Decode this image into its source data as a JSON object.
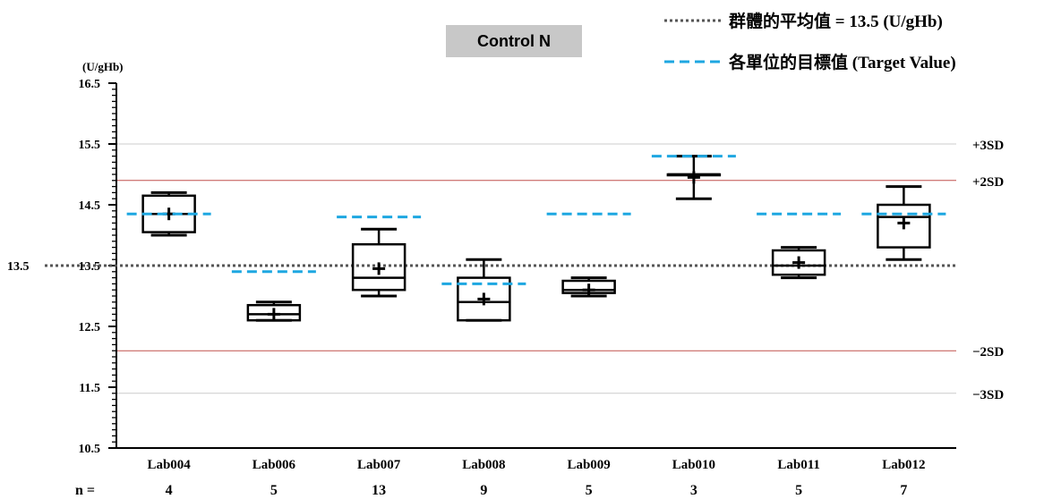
{
  "chart_data": {
    "type": "box",
    "title": "Control N",
    "unit": "(U/gHb)",
    "ylim": [
      10.5,
      16.5
    ],
    "yticks": [
      "16.5",
      "15.5",
      "14.5",
      "13.5",
      "12.5",
      "11.5",
      "10.5"
    ],
    "y_minor_step": 0.1,
    "group_mean": {
      "value": 13.5,
      "label": "13.5",
      "legend": "群體的平均值 = 13.5 (U/gHb)",
      "color": "#555555"
    },
    "target_legend": "各單位的目標值 (Target Value)",
    "target_color": "#1ea7e1",
    "sd_lines": [
      {
        "label": "+3SD",
        "value": 15.5,
        "color": "#cccccc"
      },
      {
        "label": "+2SD",
        "value": 14.9,
        "color": "#c0504d"
      },
      {
        "label": "−2SD",
        "value": 12.1,
        "color": "#c0504d"
      },
      {
        "label": "−3SD",
        "value": 11.4,
        "color": "#cccccc"
      }
    ],
    "n_label": "n =",
    "labs": [
      {
        "name": "Lab004",
        "n": "4",
        "min": 14.0,
        "q1": 14.05,
        "median": 14.35,
        "q3": 14.65,
        "max": 14.7,
        "mean": 14.35,
        "target": 14.35
      },
      {
        "name": "Lab006",
        "n": "5",
        "min": 12.6,
        "q1": 12.6,
        "median": 12.7,
        "q3": 12.85,
        "max": 12.9,
        "mean": 12.7,
        "target": 13.4
      },
      {
        "name": "Lab007",
        "n": "13",
        "min": 13.0,
        "q1": 13.1,
        "median": 13.3,
        "q3": 13.85,
        "max": 14.1,
        "mean": 13.45,
        "target": 14.3
      },
      {
        "name": "Lab008",
        "n": "9",
        "min": 12.6,
        "q1": 12.6,
        "median": 12.9,
        "q3": 13.3,
        "max": 13.6,
        "mean": 12.95,
        "target": 13.2
      },
      {
        "name": "Lab009",
        "n": "5",
        "min": 13.0,
        "q1": 13.05,
        "median": 13.1,
        "q3": 13.25,
        "max": 13.3,
        "mean": 13.1,
        "target": 14.35
      },
      {
        "name": "Lab010",
        "n": "3",
        "min": 14.6,
        "q1": 15.0,
        "median": 15.0,
        "q3": 15.0,
        "max": 15.3,
        "mean": 14.95,
        "target": 15.3
      },
      {
        "name": "Lab011",
        "n": "5",
        "min": 13.3,
        "q1": 13.35,
        "median": 13.5,
        "q3": 13.75,
        "max": 13.8,
        "mean": 13.55,
        "target": 14.35
      },
      {
        "name": "Lab012",
        "n": "7",
        "min": 13.6,
        "q1": 13.8,
        "median": 14.3,
        "q3": 14.5,
        "max": 14.8,
        "mean": 14.2,
        "target": 14.35
      }
    ]
  }
}
